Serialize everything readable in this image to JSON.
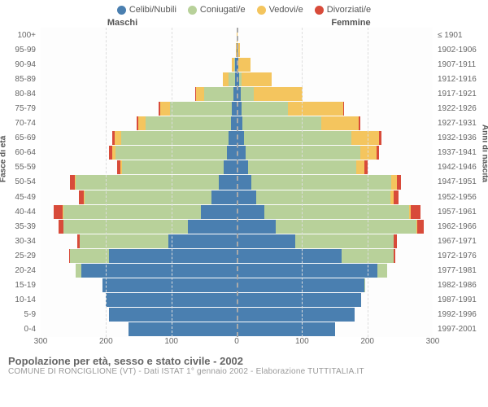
{
  "chart": {
    "type": "population-pyramid",
    "legend": [
      {
        "label": "Celibi/Nubili",
        "color": "#4a7fb0"
      },
      {
        "label": "Coniugati/e",
        "color": "#b8d19a"
      },
      {
        "label": "Vedovi/e",
        "color": "#f4c55e"
      },
      {
        "label": "Divorziati/e",
        "color": "#d84b3a"
      }
    ],
    "header_male": "Maschi",
    "header_female": "Femmine",
    "y_title_left": "Fasce di età",
    "y_title_right": "Anni di nascita",
    "x_max": 300,
    "x_ticks": [
      300,
      200,
      100,
      0,
      100,
      200,
      300
    ],
    "grid_color": "#dddddd",
    "background": "#ffffff",
    "age_labels": [
      "100+",
      "95-99",
      "90-94",
      "85-89",
      "80-84",
      "75-79",
      "70-74",
      "65-69",
      "60-64",
      "55-59",
      "50-54",
      "45-49",
      "40-44",
      "35-39",
      "30-34",
      "25-29",
      "20-24",
      "15-19",
      "10-14",
      "5-9",
      "0-4"
    ],
    "year_labels": [
      "≤ 1901",
      "1902-1906",
      "1907-1911",
      "1912-1916",
      "1917-1921",
      "1922-1926",
      "1927-1931",
      "1932-1936",
      "1937-1941",
      "1942-1946",
      "1947-1951",
      "1952-1956",
      "1957-1961",
      "1962-1966",
      "1967-1971",
      "1972-1976",
      "1977-1981",
      "1982-1986",
      "1987-1991",
      "1992-1996",
      "1997-2001"
    ],
    "male": [
      {
        "s": 0,
        "m": 0,
        "w": 0,
        "d": 0
      },
      {
        "s": 0,
        "m": 0,
        "w": 1,
        "d": 0
      },
      {
        "s": 2,
        "m": 2,
        "w": 4,
        "d": 0
      },
      {
        "s": 3,
        "m": 10,
        "w": 8,
        "d": 0
      },
      {
        "s": 5,
        "m": 45,
        "w": 12,
        "d": 1
      },
      {
        "s": 7,
        "m": 95,
        "w": 15,
        "d": 2
      },
      {
        "s": 9,
        "m": 130,
        "w": 12,
        "d": 2
      },
      {
        "s": 12,
        "m": 165,
        "w": 10,
        "d": 3
      },
      {
        "s": 15,
        "m": 170,
        "w": 6,
        "d": 4
      },
      {
        "s": 20,
        "m": 155,
        "w": 3,
        "d": 5
      },
      {
        "s": 28,
        "m": 218,
        "w": 2,
        "d": 7
      },
      {
        "s": 38,
        "m": 195,
        "w": 1,
        "d": 8
      },
      {
        "s": 55,
        "m": 210,
        "w": 1,
        "d": 14
      },
      {
        "s": 75,
        "m": 190,
        "w": 0,
        "d": 8
      },
      {
        "s": 105,
        "m": 135,
        "w": 0,
        "d": 4
      },
      {
        "s": 195,
        "m": 60,
        "w": 0,
        "d": 2
      },
      {
        "s": 238,
        "m": 8,
        "w": 0,
        "d": 0
      },
      {
        "s": 205,
        "m": 0,
        "w": 0,
        "d": 0
      },
      {
        "s": 200,
        "m": 0,
        "w": 0,
        "d": 0
      },
      {
        "s": 195,
        "m": 0,
        "w": 0,
        "d": 0
      },
      {
        "s": 165,
        "m": 0,
        "w": 0,
        "d": 0
      }
    ],
    "female": [
      {
        "s": 0,
        "m": 0,
        "w": 1,
        "d": 0
      },
      {
        "s": 1,
        "m": 0,
        "w": 4,
        "d": 0
      },
      {
        "s": 2,
        "m": 1,
        "w": 18,
        "d": 0
      },
      {
        "s": 4,
        "m": 4,
        "w": 45,
        "d": 0
      },
      {
        "s": 6,
        "m": 20,
        "w": 75,
        "d": 0
      },
      {
        "s": 8,
        "m": 70,
        "w": 85,
        "d": 1
      },
      {
        "s": 9,
        "m": 120,
        "w": 58,
        "d": 2
      },
      {
        "s": 11,
        "m": 165,
        "w": 42,
        "d": 3
      },
      {
        "s": 14,
        "m": 175,
        "w": 25,
        "d": 4
      },
      {
        "s": 18,
        "m": 165,
        "w": 12,
        "d": 5
      },
      {
        "s": 22,
        "m": 215,
        "w": 8,
        "d": 7
      },
      {
        "s": 30,
        "m": 205,
        "w": 5,
        "d": 8
      },
      {
        "s": 42,
        "m": 222,
        "w": 3,
        "d": 14
      },
      {
        "s": 60,
        "m": 215,
        "w": 1,
        "d": 10
      },
      {
        "s": 90,
        "m": 150,
        "w": 0,
        "d": 5
      },
      {
        "s": 160,
        "m": 80,
        "w": 0,
        "d": 3
      },
      {
        "s": 215,
        "m": 15,
        "w": 0,
        "d": 0
      },
      {
        "s": 195,
        "m": 1,
        "w": 0,
        "d": 0
      },
      {
        "s": 190,
        "m": 0,
        "w": 0,
        "d": 0
      },
      {
        "s": 180,
        "m": 0,
        "w": 0,
        "d": 0
      },
      {
        "s": 150,
        "m": 0,
        "w": 0,
        "d": 0
      }
    ]
  },
  "footer": {
    "title": "Popolazione per età, sesso e stato civile - 2002",
    "subtitle": "COMUNE DI RONCIGLIONE (VT) - Dati ISTAT 1° gennaio 2002 - Elaborazione TUTTITALIA.IT"
  }
}
